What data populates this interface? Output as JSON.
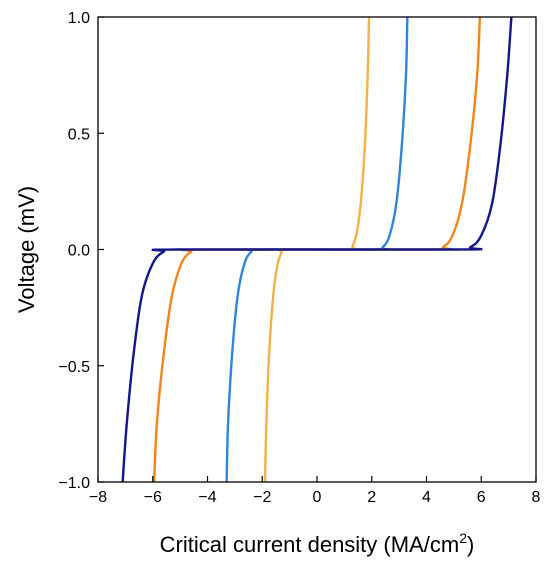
{
  "chart_data": {
    "type": "line",
    "title": "",
    "xlabel_main": "Critical current density (MA/cm",
    "xlabel_sup": "2",
    "xlabel_end": ")",
    "ylabel": "Voltage (mV)",
    "xlim": [
      -8,
      8
    ],
    "ylim": [
      -1.0,
      1.0
    ],
    "grid": false,
    "legend": "none",
    "x_ticks": [
      -8,
      -6,
      -4,
      -2,
      0,
      2,
      4,
      6,
      8
    ],
    "x_tick_labels": [
      "−8",
      "−6",
      "−4",
      "−2",
      "0",
      "2",
      "4",
      "6",
      "8"
    ],
    "y_ticks": [
      -1.0,
      -0.5,
      0.0,
      0.5,
      1.0
    ],
    "y_tick_labels": [
      "−1.0",
      "−0.5",
      "0.0",
      "0.5",
      "1.0"
    ],
    "series": [
      {
        "color": "#f5b04a",
        "x": [
          -1.9,
          -1.85,
          -1.75,
          -1.6,
          -1.45,
          -1.3,
          -1.15,
          1.15,
          1.3,
          1.45,
          1.6,
          1.75,
          1.85,
          1.9
        ],
        "y": [
          -1.0,
          -0.75,
          -0.45,
          -0.2,
          -0.07,
          -0.015,
          0.0,
          0.0,
          0.015,
          0.07,
          0.2,
          0.45,
          0.75,
          1.0
        ]
      },
      {
        "color": "#2f86d8",
        "x": [
          -3.3,
          -3.25,
          -3.1,
          -2.9,
          -2.65,
          -2.4,
          -2.1,
          2.1,
          2.4,
          2.65,
          2.9,
          3.1,
          3.25,
          3.3
        ],
        "y": [
          -1.0,
          -0.75,
          -0.45,
          -0.2,
          -0.06,
          -0.01,
          0.0,
          0.0,
          0.01,
          0.06,
          0.2,
          0.45,
          0.75,
          1.0
        ]
      },
      {
        "color": "#f0861a",
        "x": [
          -5.95,
          -5.85,
          -5.6,
          -5.3,
          -4.95,
          -4.6,
          -4.2,
          4.2,
          4.6,
          4.95,
          5.3,
          5.6,
          5.85,
          5.95
        ],
        "y": [
          -1.0,
          -0.75,
          -0.45,
          -0.2,
          -0.06,
          -0.01,
          0.0,
          0.0,
          0.01,
          0.06,
          0.2,
          0.45,
          0.75,
          1.0
        ]
      },
      {
        "color": "#15158a",
        "x": [
          -7.1,
          -6.95,
          -6.7,
          -6.4,
          -6.0,
          -5.6,
          -5.1,
          5.1,
          5.6,
          6.0,
          6.4,
          6.7,
          6.95,
          7.1
        ],
        "y": [
          -1.0,
          -0.75,
          -0.45,
          -0.2,
          -0.06,
          -0.01,
          0.0,
          0.0,
          0.01,
          0.06,
          0.2,
          0.45,
          0.75,
          1.0
        ]
      }
    ]
  }
}
